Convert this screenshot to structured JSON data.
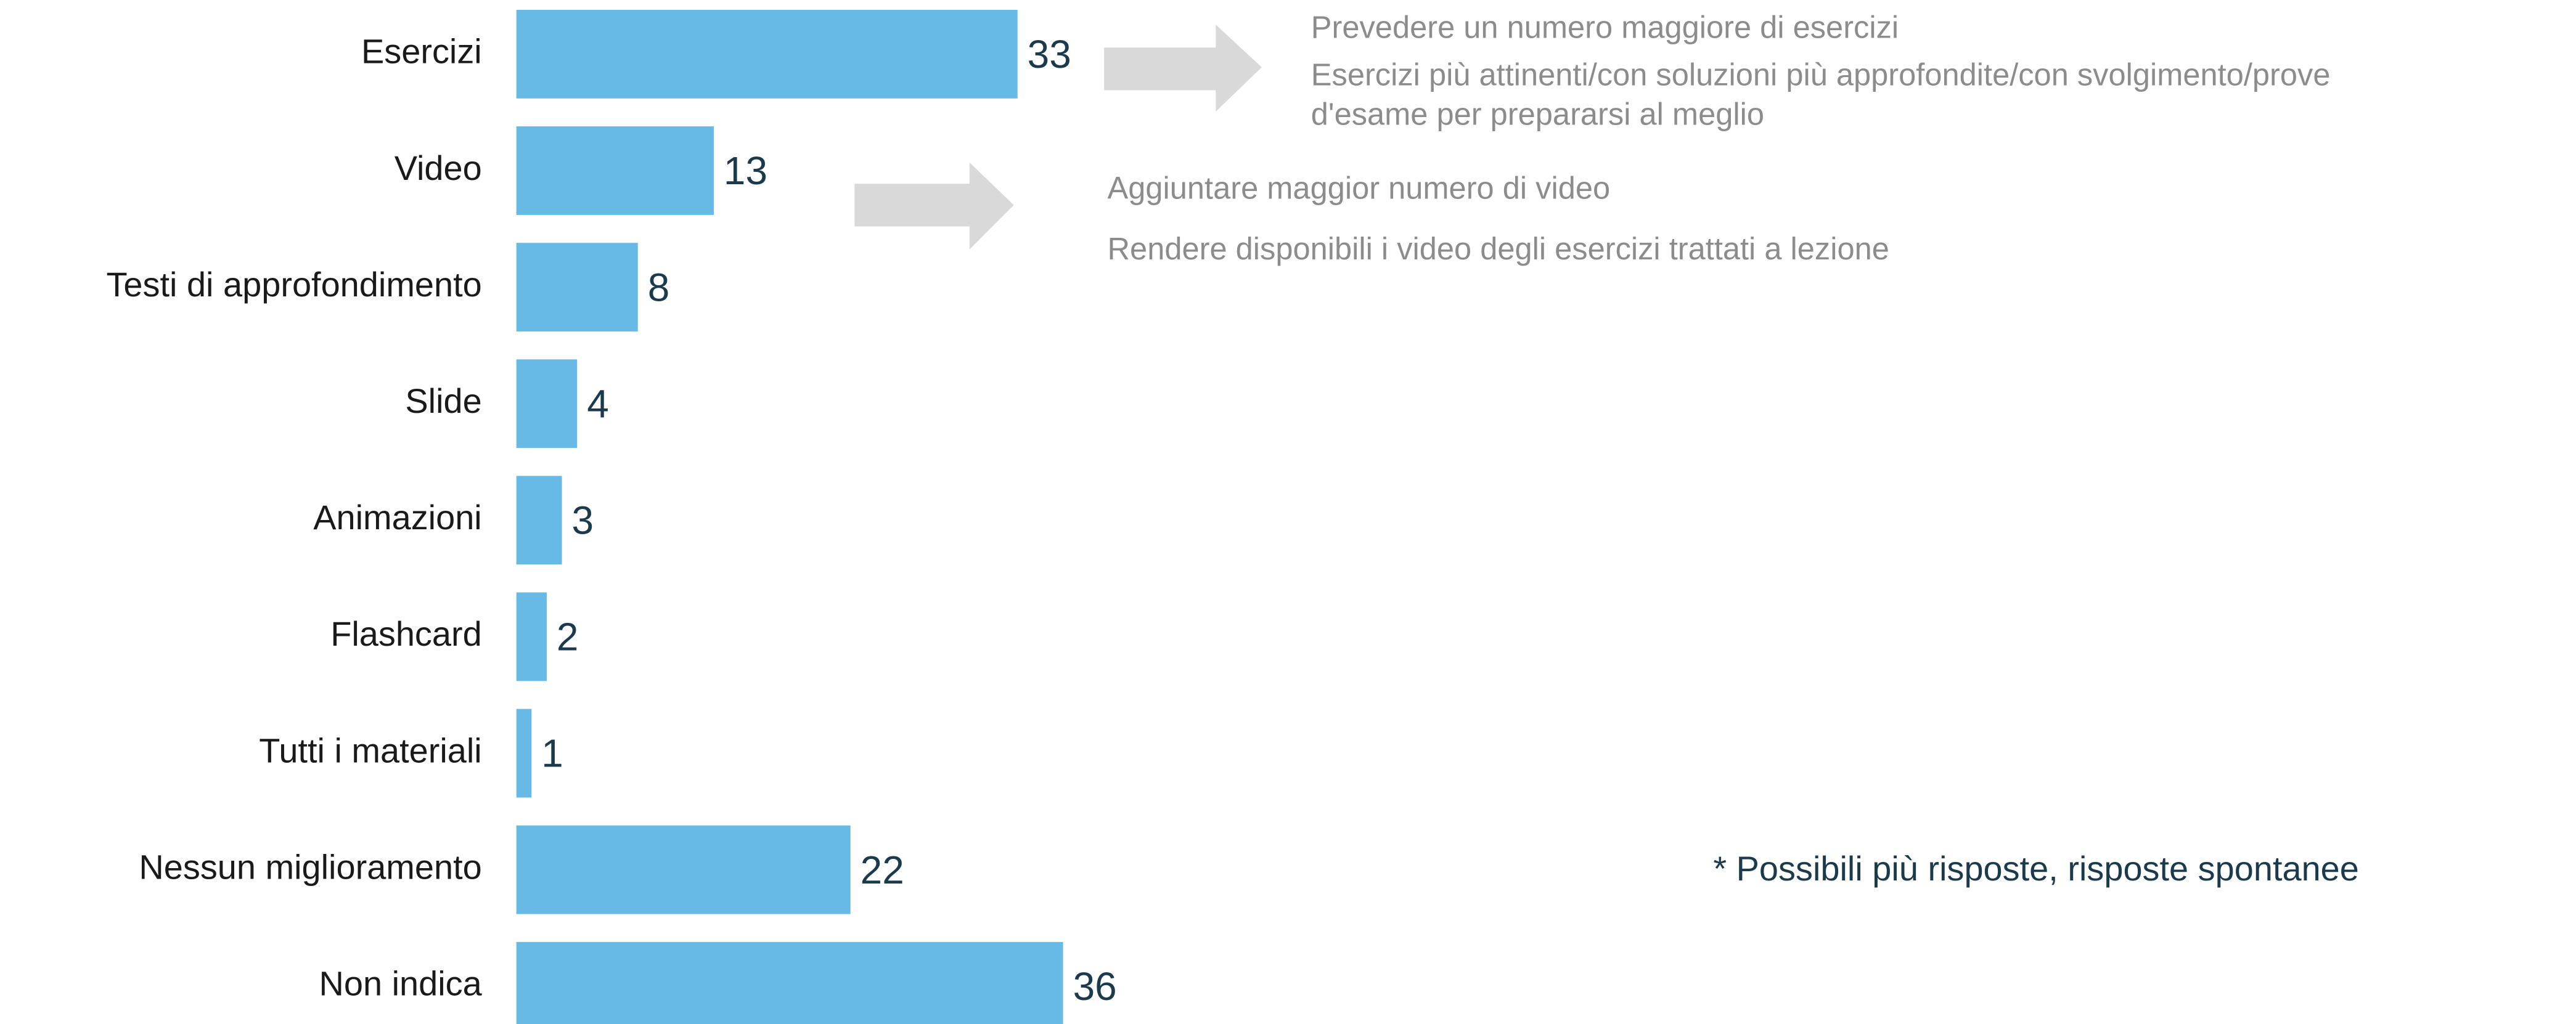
{
  "chart_data": {
    "type": "bar",
    "orientation": "horizontal",
    "categories": [
      "Esercizi",
      "Video",
      "Testi di approfondimento",
      "Slide",
      "Animazioni",
      "Flashcard",
      "Tutti i materiali",
      "Nessun miglioramento",
      "Non indica"
    ],
    "values": [
      33,
      13,
      8,
      4,
      3,
      2,
      1,
      22,
      36
    ],
    "color": "#67bae6",
    "xlim": [
      0,
      36
    ],
    "annotations": [
      [
        "Prevedere un numero maggiore di esercizi",
        "Esercizi più attinenti/con soluzioni più approfondite/con svolgimento/prove",
        "d'esame per prepararsi al meglio"
      ],
      [
        "Aggiuntare maggior numero di video",
        "Rendere disponibili i video degli esercizi trattati a lezione"
      ]
    ],
    "note": "* Possibili più risposte, risposte spontanee"
  }
}
